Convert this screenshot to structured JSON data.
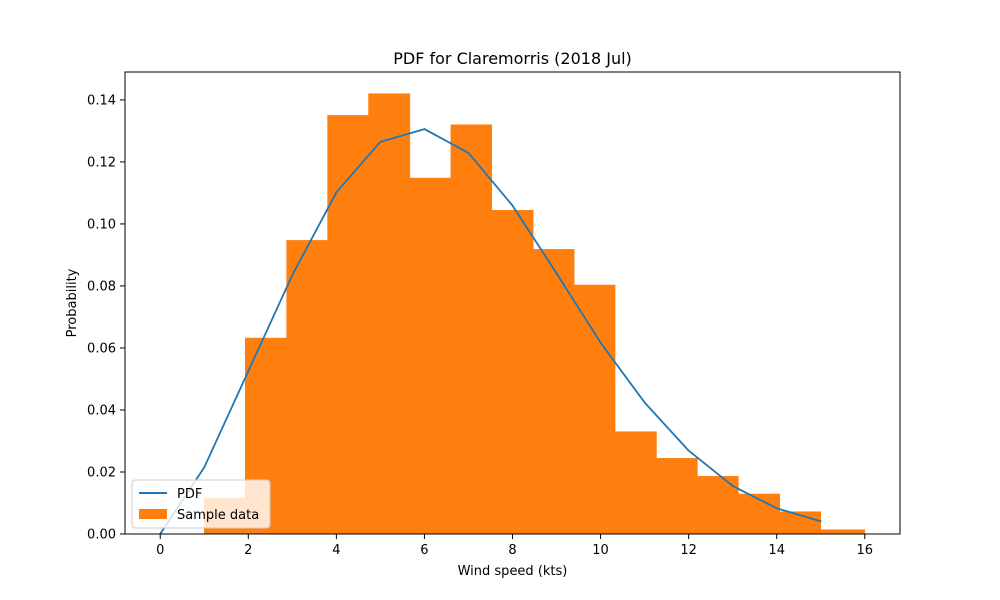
{
  "chart_data": {
    "type": "bar",
    "title": "PDF for Claremorris (2018 Jul)",
    "xlabel": "Wind speed (kts)",
    "ylabel": "Probability",
    "xlim": [
      -0.8,
      16.8
    ],
    "ylim": [
      0,
      0.149
    ],
    "xticks": [
      0,
      2,
      4,
      6,
      8,
      10,
      12,
      14,
      16
    ],
    "xtick_labels": [
      "0",
      "2",
      "4",
      "6",
      "8",
      "10",
      "12",
      "14",
      "16"
    ],
    "yticks": [
      0,
      0.02,
      0.04,
      0.06,
      0.08,
      0.1,
      0.12,
      0.14
    ],
    "ytick_labels": [
      "0.00",
      "0.02",
      "0.04",
      "0.06",
      "0.08",
      "0.10",
      "0.12",
      "0.14"
    ],
    "grid": false,
    "legend_position": "lower-left",
    "series": [
      {
        "name": "Sample data",
        "kind": "histogram",
        "color": "#ff7f0e",
        "bins": [
          {
            "x0": 1.0,
            "x1": 1.93,
            "value": 0.0115
          },
          {
            "x0": 1.93,
            "x1": 2.87,
            "value": 0.0632
          },
          {
            "x0": 2.87,
            "x1": 3.8,
            "value": 0.0947
          },
          {
            "x0": 3.8,
            "x1": 4.73,
            "value": 0.135
          },
          {
            "x0": 4.73,
            "x1": 5.67,
            "value": 0.142
          },
          {
            "x0": 5.67,
            "x1": 6.6,
            "value": 0.1148
          },
          {
            "x0": 6.6,
            "x1": 7.53,
            "value": 0.132
          },
          {
            "x0": 7.53,
            "x1": 8.47,
            "value": 0.1044
          },
          {
            "x0": 8.47,
            "x1": 9.4,
            "value": 0.0918
          },
          {
            "x0": 9.4,
            "x1": 10.33,
            "value": 0.0803
          },
          {
            "x0": 10.33,
            "x1": 11.27,
            "value": 0.033
          },
          {
            "x0": 11.27,
            "x1": 12.2,
            "value": 0.0244
          },
          {
            "x0": 12.2,
            "x1": 13.13,
            "value": 0.0186
          },
          {
            "x0": 13.13,
            "x1": 14.07,
            "value": 0.0129
          },
          {
            "x0": 14.07,
            "x1": 15.0,
            "value": 0.0072
          },
          {
            "x0": 15.0,
            "x1": 16.0,
            "value": 0.0014
          }
        ]
      },
      {
        "name": "PDF",
        "kind": "line",
        "color": "#1f77b4",
        "x": [
          0,
          1,
          2,
          3,
          4,
          5,
          6,
          7,
          8,
          9,
          10,
          11,
          12,
          13,
          14,
          15
        ],
        "y": [
          0.0,
          0.0215,
          0.0525,
          0.0835,
          0.1102,
          0.1265,
          0.1306,
          0.1229,
          0.1059,
          0.0841,
          0.0617,
          0.0424,
          0.0269,
          0.0155,
          0.0083,
          0.0041
        ]
      }
    ]
  }
}
